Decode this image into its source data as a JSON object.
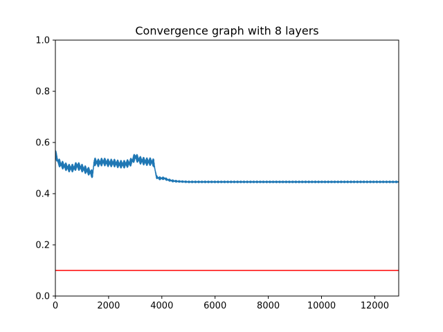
{
  "chart_data": {
    "type": "line",
    "title": "Convergence graph with 8 layers",
    "xlabel": "",
    "ylabel": "",
    "xlim": [
      0,
      12900
    ],
    "ylim": [
      0,
      1.0
    ],
    "x_ticks": [
      0,
      2000,
      4000,
      6000,
      8000,
      10000,
      12000
    ],
    "x_tick_labels": [
      "0",
      "2000",
      "4000",
      "6000",
      "8000",
      "10000",
      "12000"
    ],
    "y_ticks": [
      0.0,
      0.2,
      0.4,
      0.6,
      0.8,
      1.0
    ],
    "y_tick_labels": [
      "0.0",
      "0.2",
      "0.4",
      "0.6",
      "0.8",
      "1.0"
    ],
    "grid": false,
    "series": [
      {
        "color": "#1f77b4",
        "x": [
          0,
          50,
          100,
          200,
          300,
          400,
          500,
          600,
          700,
          800,
          900,
          1000,
          1100,
          1200,
          1300,
          1400,
          1450,
          1500,
          1600,
          1800,
          2000,
          2200,
          2400,
          2600,
          2800,
          2900,
          3000,
          3100,
          3200,
          3400,
          3600,
          3700,
          3750,
          3800,
          3900,
          4000,
          4100,
          4200,
          4400,
          4600,
          4800,
          5000,
          6000,
          7000,
          8000,
          9000,
          10000,
          11000,
          12000,
          12900
        ],
        "y": [
          0.56,
          0.54,
          0.525,
          0.515,
          0.51,
          0.505,
          0.5,
          0.5,
          0.5,
          0.51,
          0.505,
          0.5,
          0.495,
          0.49,
          0.485,
          0.475,
          0.52,
          0.525,
          0.52,
          0.525,
          0.52,
          0.52,
          0.515,
          0.515,
          0.52,
          0.53,
          0.545,
          0.535,
          0.53,
          0.525,
          0.525,
          0.52,
          0.49,
          0.465,
          0.46,
          0.46,
          0.46,
          0.455,
          0.45,
          0.448,
          0.447,
          0.446,
          0.446,
          0.446,
          0.446,
          0.446,
          0.446,
          0.446,
          0.446,
          0.446
        ],
        "noise": [
          0.015,
          0.015,
          0.015,
          0.015,
          0.015,
          0.015,
          0.015,
          0.015,
          0.015,
          0.015,
          0.015,
          0.015,
          0.015,
          0.015,
          0.015,
          0.015,
          0.015,
          0.015,
          0.015,
          0.015,
          0.015,
          0.015,
          0.015,
          0.015,
          0.015,
          0.015,
          0.015,
          0.015,
          0.015,
          0.015,
          0.015,
          0.015,
          0.008,
          0.006,
          0.006,
          0.005,
          0.005,
          0.004,
          0.004,
          0.003,
          0.003,
          0.003,
          0.003,
          0.003,
          0.003,
          0.003,
          0.003,
          0.003,
          0.003,
          0.003
        ]
      }
    ],
    "reference_line": {
      "y": 0.1,
      "color": "#ff0000"
    }
  }
}
